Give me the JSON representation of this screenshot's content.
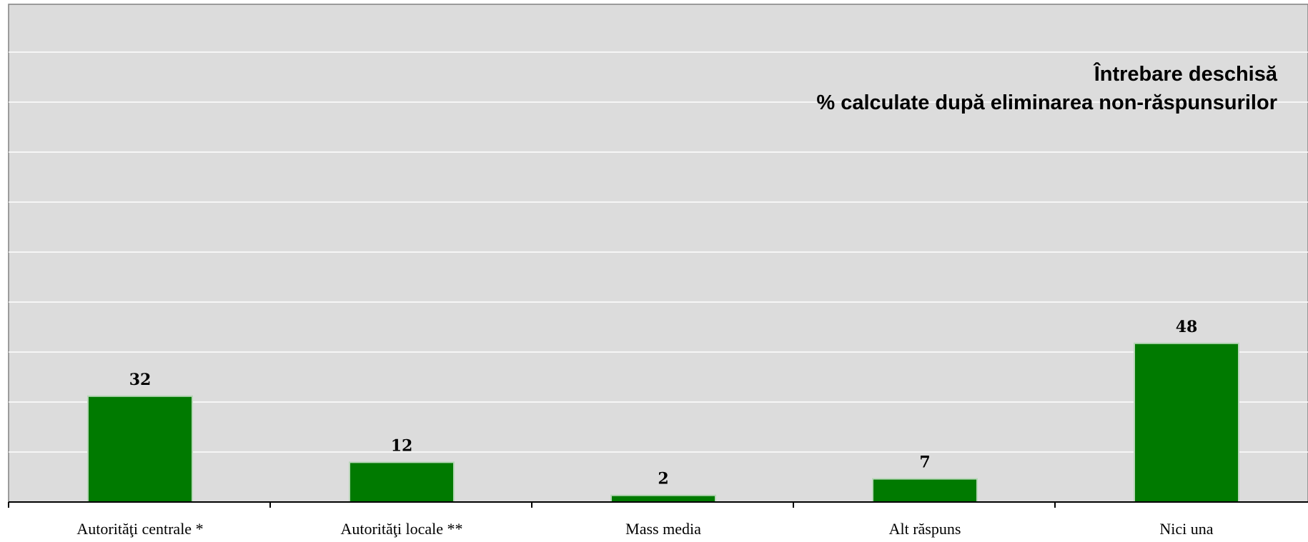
{
  "chart_data": {
    "type": "bar",
    "title": "",
    "xlabel": "",
    "ylabel": "",
    "categories": [
      "Autorităţi centrale *",
      "Autorităţi locale **",
      "Mass media",
      "Alt răspuns",
      "Nici una"
    ],
    "values": [
      32,
      12,
      2,
      7,
      48
    ],
    "value_labels": [
      "32",
      "12",
      "2",
      "7",
      "48"
    ],
    "ylim": [
      0,
      100
    ],
    "grid": true,
    "annotations": [
      "Întrebare deschisă",
      "% calculate după eliminarea non-răspunsurilor"
    ]
  },
  "colors": {
    "bar": "#007a00",
    "bar_border": "#b8d6b8",
    "plot_background": "#dcdcdc",
    "gridline": "#ffffff",
    "axis": "#000000"
  }
}
